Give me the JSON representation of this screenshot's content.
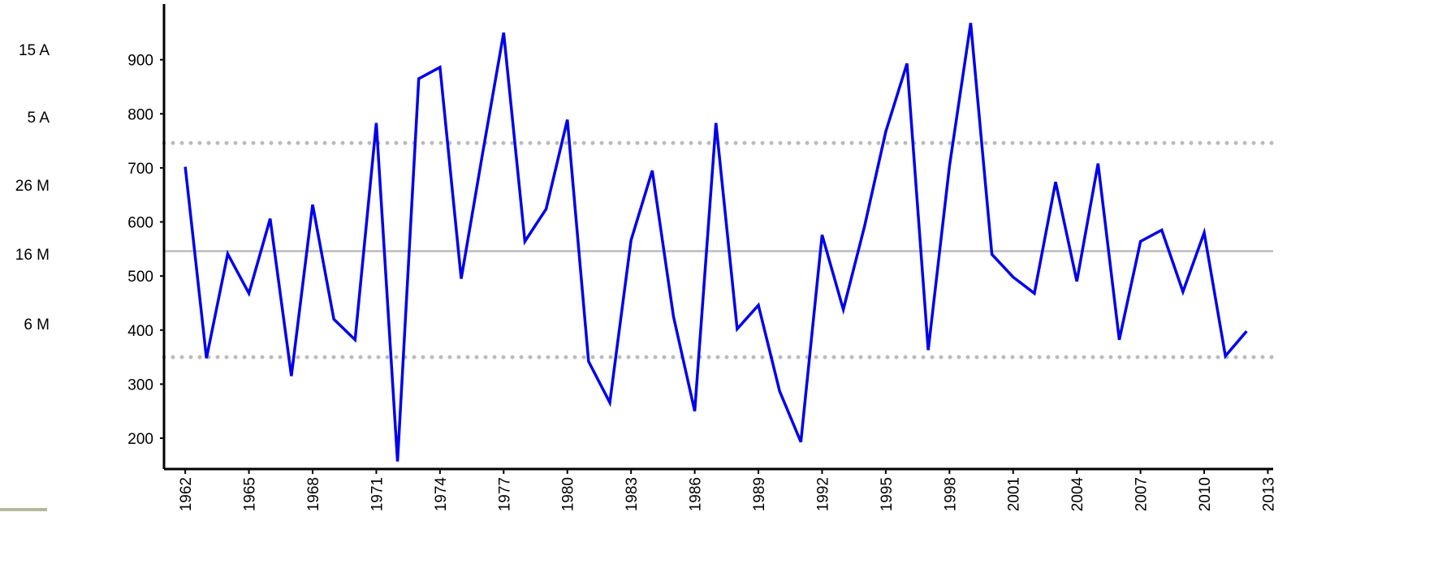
{
  "chart_data": {
    "type": "line",
    "x": [
      1962,
      1963,
      1964,
      1965,
      1966,
      1967,
      1968,
      1969,
      1970,
      1971,
      1972,
      1973,
      1974,
      1975,
      1976,
      1977,
      1978,
      1979,
      1980,
      1981,
      1982,
      1983,
      1984,
      1985,
      1986,
      1987,
      1988,
      1989,
      1990,
      1991,
      1992,
      1993,
      1994,
      1995,
      1996,
      1997,
      1998,
      1999,
      2000,
      2001,
      2002,
      2003,
      2004,
      2005,
      2006,
      2007,
      2008,
      2009,
      2010,
      2011,
      2012
    ],
    "series": [
      {
        "color": "#0000ee",
        "values": [
          702,
          348,
          541,
          468,
          606,
          315,
          632,
          420,
          382,
          783,
          157,
          865,
          886,
          495,
          725,
          950,
          564,
          624,
          789,
          342,
          266,
          566,
          695,
          425,
          250,
          783,
          402,
          446,
          287,
          193,
          576,
          438,
          592,
          767,
          893,
          363,
          703,
          968,
          540,
          498,
          468,
          674,
          490,
          708,
          382,
          564,
          585,
          471,
          580,
          352,
          398
        ]
      }
    ],
    "xlim": [
      1961,
      2013.25
    ],
    "xticks": [
      1962,
      1965,
      1968,
      1971,
      1974,
      1977,
      1980,
      1983,
      1986,
      1989,
      1992,
      1995,
      1998,
      2001,
      2004,
      2007,
      2010,
      2013
    ],
    "ylim": [
      143,
      1000
    ],
    "yticks": [
      200,
      300,
      400,
      500,
      600,
      700,
      800,
      900
    ],
    "reference_lines": [
      {
        "value": 546,
        "style": "solid",
        "color": "#bbbbbb"
      },
      {
        "value": 746,
        "style": "dotted",
        "color": "#bbbbbb"
      },
      {
        "value": 350,
        "style": "dotted",
        "color": "#bbbbbb"
      }
    ],
    "side_labels": [
      "15 A",
      "5 A",
      "26 M",
      "16 M",
      "6 M"
    ]
  }
}
